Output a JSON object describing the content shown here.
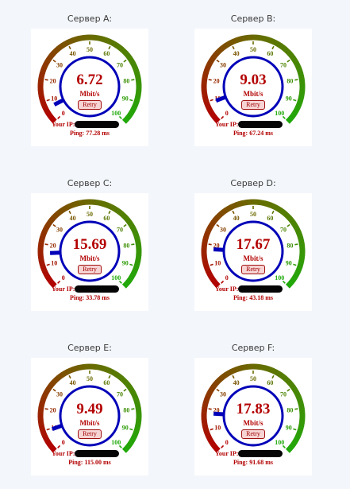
{
  "gauge_scale": {
    "labels": [
      "0",
      "10",
      "20",
      "30",
      "40",
      "50",
      "60",
      "70",
      "80",
      "90",
      "100"
    ],
    "max": 100,
    "unit": "Mbit/s"
  },
  "colors": {
    "low": "#b30000",
    "mid": "#6a6a00",
    "high": "#1faa0a",
    "dial_ring": "#0000b8",
    "needle": "#0000b8",
    "text": "#b30000"
  },
  "ip_label": "Your IP:",
  "ping_label": "Ping:",
  "retry_label": "Retry",
  "servers": [
    {
      "title": "Сервер A:",
      "speed": "6.72",
      "value": 6.72,
      "ping": "77.28 ms",
      "ip": "redacted"
    },
    {
      "title": "Сервер B:",
      "speed": "9.03",
      "value": 9.03,
      "ping": "67.24 ms",
      "ip": "redacted"
    },
    {
      "title": "Сервер C:",
      "speed": "15.69",
      "value": 15.69,
      "ping": "33.78 ms",
      "ip": "redacted"
    },
    {
      "title": "Сервер D:",
      "speed": "17.67",
      "value": 17.67,
      "ping": "43.18 ms",
      "ip": "redacted"
    },
    {
      "title": "Сервер E:",
      "speed": "9.49",
      "value": 9.49,
      "ping": "115.00 ms",
      "ip": "redacted"
    },
    {
      "title": "Сервер F:",
      "speed": "17.83",
      "value": 17.83,
      "ping": "91.68 ms",
      "ip": "redacted"
    }
  ]
}
